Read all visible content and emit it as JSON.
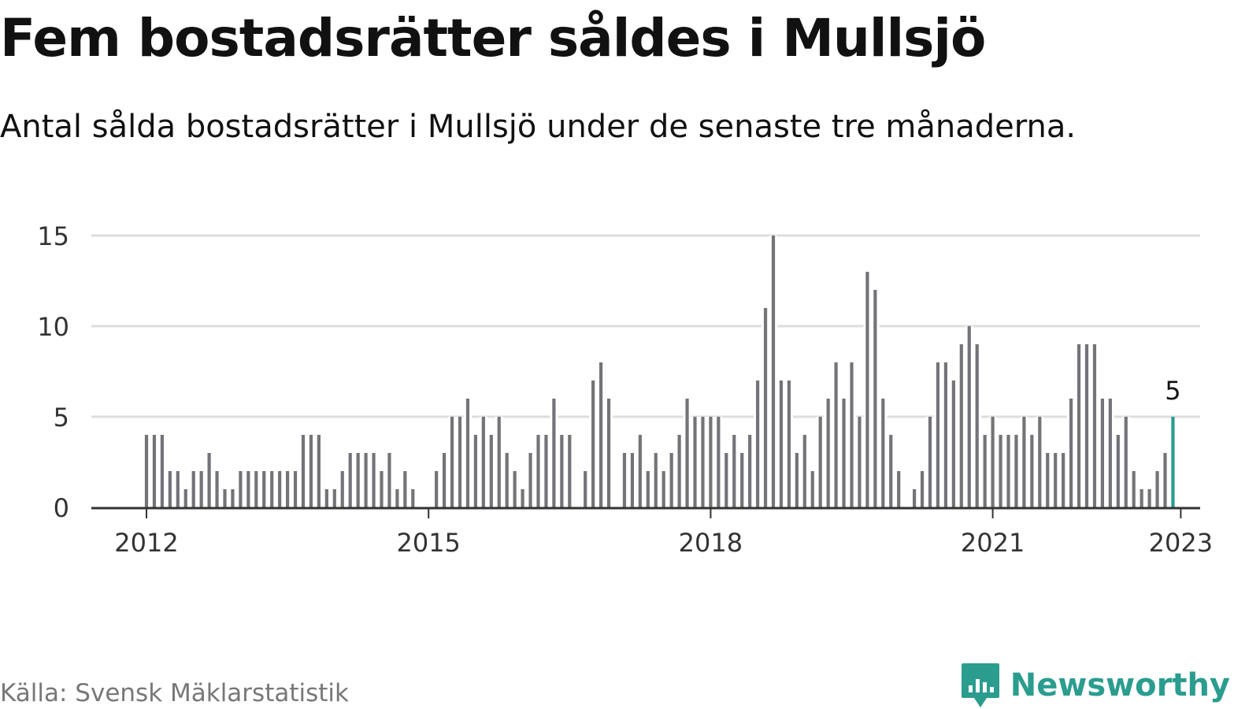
{
  "title": "Fem bostadsrätter såldes i Mullsjö",
  "subtitle": "Antal sålda bostadsrätter i Mullsjö under de senaste tre månaderna.",
  "source": "Källa: Svensk Mäklarstatistik",
  "brand": "Newsworthy",
  "colors": {
    "bar": "#747478",
    "highlight": "#2a9d8f",
    "grid": "#dddddd",
    "axis": "#333333"
  },
  "chart_data": {
    "type": "bar",
    "xlabel": "",
    "ylabel": "",
    "ylim": [
      0,
      15
    ],
    "yticks": [
      0,
      5,
      10,
      15
    ],
    "xticks": [
      "2012",
      "2015",
      "2018",
      "2021",
      "2023"
    ],
    "start": "2012-01",
    "values": [
      4,
      4,
      4,
      2,
      2,
      1,
      2,
      2,
      3,
      2,
      1,
      1,
      2,
      2,
      2,
      2,
      2,
      2,
      2,
      2,
      4,
      4,
      4,
      1,
      1,
      2,
      3,
      3,
      3,
      3,
      2,
      3,
      1,
      2,
      1,
      0,
      0,
      2,
      3,
      5,
      5,
      6,
      4,
      5,
      4,
      5,
      3,
      2,
      1,
      3,
      4,
      4,
      6,
      4,
      4,
      0,
      2,
      7,
      8,
      6,
      0,
      3,
      3,
      4,
      2,
      3,
      2,
      3,
      4,
      6,
      5,
      5,
      5,
      5,
      3,
      4,
      3,
      4,
      7,
      11,
      15,
      7,
      7,
      3,
      4,
      2,
      5,
      6,
      8,
      6,
      8,
      5,
      13,
      12,
      6,
      4,
      2,
      0,
      1,
      2,
      5,
      8,
      8,
      7,
      9,
      10,
      9,
      4,
      5,
      4,
      4,
      4,
      5,
      4,
      5,
      3,
      3,
      3,
      6,
      9,
      9,
      9,
      6,
      6,
      4,
      5,
      2,
      1,
      1,
      2,
      3,
      5
    ],
    "highlight_label": "5",
    "grid": true,
    "legend": "none"
  }
}
